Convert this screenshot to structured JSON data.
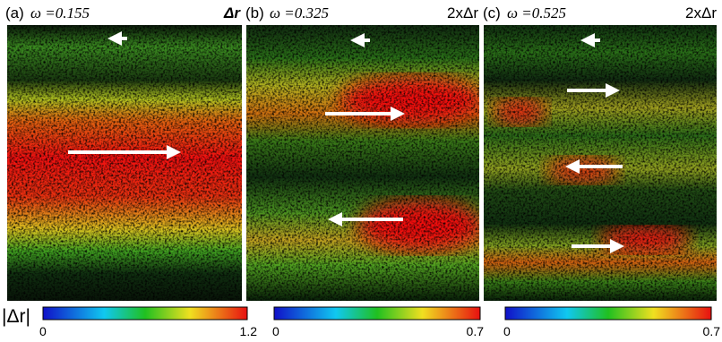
{
  "colorbar_label": "|Δr|",
  "panels": [
    {
      "label": "(a)",
      "omega": "ω =0.155",
      "scale": "Δr",
      "colorbar": {
        "min": 0,
        "max": 1.2
      }
    },
    {
      "label": "(b)",
      "omega": "ω =0.325",
      "scale": "2xΔr",
      "colorbar": {
        "min": 0,
        "max": 0.7
      }
    },
    {
      "label": "(c)",
      "omega": "ω =0.525",
      "scale": "2xΔr",
      "colorbar": {
        "min": 0,
        "max": 0.7
      }
    }
  ]
}
